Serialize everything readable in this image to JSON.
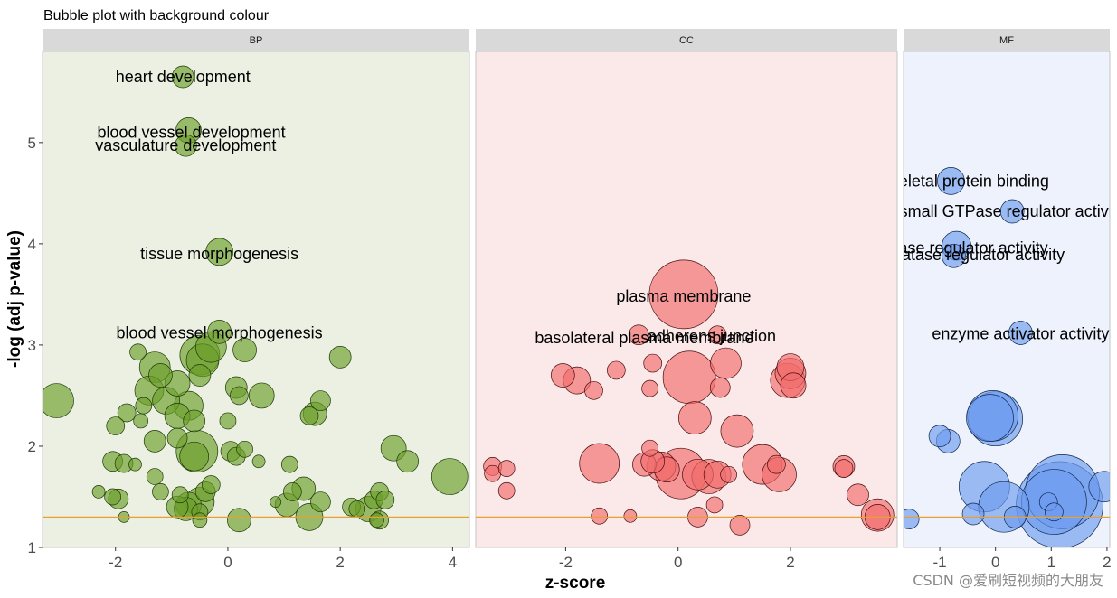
{
  "title": "Bubble plot with background colour",
  "watermark": "CSDN @爱刷短视频的大朋友",
  "chart_data": {
    "type": "scatter",
    "title": "Bubble plot with background colour",
    "xlabel": "z-score",
    "ylabel": "-log (adj p-value)",
    "ylim": [
      1,
      5.9
    ],
    "y_ticks": [
      "1",
      "2",
      "3",
      "4",
      "5"
    ],
    "threshold_line": 1.3,
    "panels": [
      {
        "name": "BP",
        "fill": "#6b9e2a",
        "stroke": "#1d3a05",
        "background": "#ebf0e3",
        "xlim": [
          -3.3,
          4.3
        ],
        "x_ticks": [
          "-2",
          "0",
          "2",
          "4"
        ],
        "x_tick_values": [
          -2,
          0,
          2,
          4
        ],
        "labels": [
          {
            "text": "heart development",
            "x": -0.8,
            "y": 5.65
          },
          {
            "text": "blood vessel development",
            "x": -0.65,
            "y": 5.1
          },
          {
            "text": "vasculature development",
            "x": -0.75,
            "y": 4.97
          },
          {
            "text": "tissue morphogenesis",
            "x": -0.15,
            "y": 3.9
          },
          {
            "text": "blood vessel morphogenesis",
            "x": -0.15,
            "y": 3.12
          }
        ],
        "points": [
          {
            "x": -0.8,
            "y": 5.65,
            "r": 12
          },
          {
            "x": -0.7,
            "y": 5.12,
            "r": 14
          },
          {
            "x": -0.75,
            "y": 4.97,
            "r": 12
          },
          {
            "x": -0.15,
            "y": 3.92,
            "r": 15
          },
          {
            "x": -0.15,
            "y": 3.13,
            "r": 13
          },
          {
            "x": -3.05,
            "y": 2.45,
            "r": 19
          },
          {
            "x": -1.6,
            "y": 2.93,
            "r": 9
          },
          {
            "x": -1.3,
            "y": 2.78,
            "r": 17
          },
          {
            "x": -1.2,
            "y": 2.7,
            "r": 13
          },
          {
            "x": -1.4,
            "y": 2.55,
            "r": 16
          },
          {
            "x": -1.1,
            "y": 2.45,
            "r": 15
          },
          {
            "x": -0.9,
            "y": 2.62,
            "r": 14
          },
          {
            "x": -0.7,
            "y": 2.4,
            "r": 16
          },
          {
            "x": -0.5,
            "y": 2.9,
            "r": 22
          },
          {
            "x": -0.45,
            "y": 2.85,
            "r": 18
          },
          {
            "x": -0.3,
            "y": 2.98,
            "r": 17
          },
          {
            "x": 0.3,
            "y": 2.95,
            "r": 13
          },
          {
            "x": 0.15,
            "y": 2.58,
            "r": 12
          },
          {
            "x": 0.2,
            "y": 2.5,
            "r": 10
          },
          {
            "x": 0.6,
            "y": 2.5,
            "r": 14
          },
          {
            "x": 2.0,
            "y": 2.88,
            "r": 12
          },
          {
            "x": 1.65,
            "y": 2.45,
            "r": 11
          },
          {
            "x": 1.55,
            "y": 2.32,
            "r": 13
          },
          {
            "x": 1.45,
            "y": 2.3,
            "r": 10
          },
          {
            "x": -1.8,
            "y": 2.33,
            "r": 10
          },
          {
            "x": -2.0,
            "y": 2.2,
            "r": 10
          },
          {
            "x": -1.5,
            "y": 2.4,
            "r": 9
          },
          {
            "x": -1.55,
            "y": 2.25,
            "r": 8
          },
          {
            "x": -0.9,
            "y": 2.3,
            "r": 14
          },
          {
            "x": -0.6,
            "y": 2.25,
            "r": 12
          },
          {
            "x": -0.5,
            "y": 2.7,
            "r": 12
          },
          {
            "x": 0.0,
            "y": 2.25,
            "r": 9
          },
          {
            "x": -0.55,
            "y": 1.95,
            "r": 23
          },
          {
            "x": -0.6,
            "y": 1.9,
            "r": 16
          },
          {
            "x": -0.9,
            "y": 2.08,
            "r": 11
          },
          {
            "x": -1.3,
            "y": 2.05,
            "r": 12
          },
          {
            "x": -2.05,
            "y": 1.85,
            "r": 11
          },
          {
            "x": -1.85,
            "y": 1.83,
            "r": 10
          },
          {
            "x": -1.65,
            "y": 1.82,
            "r": 7
          },
          {
            "x": -1.3,
            "y": 1.7,
            "r": 9
          },
          {
            "x": 0.05,
            "y": 1.95,
            "r": 11
          },
          {
            "x": 0.15,
            "y": 1.9,
            "r": 10
          },
          {
            "x": 0.3,
            "y": 1.97,
            "r": 9
          },
          {
            "x": 0.55,
            "y": 1.85,
            "r": 7
          },
          {
            "x": 1.1,
            "y": 1.82,
            "r": 9
          },
          {
            "x": 2.95,
            "y": 1.98,
            "r": 14
          },
          {
            "x": 3.2,
            "y": 1.85,
            "r": 12
          },
          {
            "x": 3.95,
            "y": 1.7,
            "r": 20
          },
          {
            "x": -2.3,
            "y": 1.55,
            "r": 7
          },
          {
            "x": -2.05,
            "y": 1.5,
            "r": 9
          },
          {
            "x": -1.95,
            "y": 1.48,
            "r": 11
          },
          {
            "x": -1.2,
            "y": 1.55,
            "r": 9
          },
          {
            "x": -0.7,
            "y": 1.42,
            "r": 14
          },
          {
            "x": -0.5,
            "y": 1.45,
            "r": 16
          },
          {
            "x": -0.4,
            "y": 1.55,
            "r": 11
          },
          {
            "x": -0.3,
            "y": 1.62,
            "r": 10
          },
          {
            "x": -0.85,
            "y": 1.52,
            "r": 9
          },
          {
            "x": -0.5,
            "y": 1.35,
            "r": 9
          },
          {
            "x": -0.5,
            "y": 1.27,
            "r": 8
          },
          {
            "x": -0.75,
            "y": 1.38,
            "r": 13
          },
          {
            "x": -0.9,
            "y": 1.4,
            "r": 12
          },
          {
            "x": 0.2,
            "y": 1.27,
            "r": 13
          },
          {
            "x": 0.85,
            "y": 1.45,
            "r": 6
          },
          {
            "x": 1.05,
            "y": 1.42,
            "r": 13
          },
          {
            "x": 1.15,
            "y": 1.55,
            "r": 10
          },
          {
            "x": 1.35,
            "y": 1.58,
            "r": 13
          },
          {
            "x": 1.45,
            "y": 1.3,
            "r": 15
          },
          {
            "x": 1.65,
            "y": 1.45,
            "r": 11
          },
          {
            "x": 2.2,
            "y": 1.4,
            "r": 10
          },
          {
            "x": 2.3,
            "y": 1.38,
            "r": 9
          },
          {
            "x": 2.5,
            "y": 1.38,
            "r": 14
          },
          {
            "x": 2.6,
            "y": 1.47,
            "r": 10
          },
          {
            "x": 2.7,
            "y": 1.55,
            "r": 10
          },
          {
            "x": 2.8,
            "y": 1.47,
            "r": 10
          },
          {
            "x": 2.65,
            "y": 1.27,
            "r": 8
          },
          {
            "x": 2.7,
            "y": 1.27,
            "r": 10
          },
          {
            "x": -1.85,
            "y": 1.3,
            "r": 6
          }
        ]
      },
      {
        "name": "CC",
        "fill": "#f16b6b",
        "stroke": "#4a0d0d",
        "background": "#fbe9e9",
        "xlim": [
          -3.6,
          3.9
        ],
        "x_ticks": [
          "-2",
          "0",
          "2"
        ],
        "x_tick_values": [
          -2,
          0,
          2
        ],
        "labels": [
          {
            "text": "plasma membrane",
            "x": 0.1,
            "y": 3.48
          },
          {
            "text": "basolateral plasma membrane",
            "x": -0.6,
            "y": 3.07
          },
          {
            "text": "adherens junction",
            "x": 0.6,
            "y": 3.09
          }
        ],
        "points": [
          {
            "x": 0.1,
            "y": 3.5,
            "r": 38
          },
          {
            "x": -0.7,
            "y": 3.1,
            "r": 11
          },
          {
            "x": 0.7,
            "y": 3.1,
            "r": 10
          },
          {
            "x": 0.85,
            "y": 2.82,
            "r": 17
          },
          {
            "x": 0.2,
            "y": 2.68,
            "r": 29
          },
          {
            "x": -0.45,
            "y": 2.82,
            "r": 10
          },
          {
            "x": -1.1,
            "y": 2.75,
            "r": 10
          },
          {
            "x": -2.05,
            "y": 2.7,
            "r": 13
          },
          {
            "x": -1.8,
            "y": 2.65,
            "r": 15
          },
          {
            "x": -1.5,
            "y": 2.55,
            "r": 10
          },
          {
            "x": -0.5,
            "y": 2.57,
            "r": 9
          },
          {
            "x": 0.75,
            "y": 2.58,
            "r": 11
          },
          {
            "x": 1.95,
            "y": 2.65,
            "r": 19
          },
          {
            "x": 2.0,
            "y": 2.72,
            "r": 17
          },
          {
            "x": 2.05,
            "y": 2.6,
            "r": 14
          },
          {
            "x": 2.0,
            "y": 2.78,
            "r": 15
          },
          {
            "x": 0.3,
            "y": 2.28,
            "r": 18
          },
          {
            "x": 1.05,
            "y": 2.15,
            "r": 18
          },
          {
            "x": -1.4,
            "y": 1.83,
            "r": 22
          },
          {
            "x": -0.6,
            "y": 1.82,
            "r": 13
          },
          {
            "x": -0.45,
            "y": 1.85,
            "r": 13
          },
          {
            "x": -0.5,
            "y": 1.98,
            "r": 9
          },
          {
            "x": -0.3,
            "y": 1.8,
            "r": 16
          },
          {
            "x": -0.2,
            "y": 1.77,
            "r": 14
          },
          {
            "x": 0.05,
            "y": 1.73,
            "r": 28
          },
          {
            "x": 0.35,
            "y": 1.72,
            "r": 17
          },
          {
            "x": 0.55,
            "y": 1.7,
            "r": 19
          },
          {
            "x": 0.7,
            "y": 1.72,
            "r": 15
          },
          {
            "x": 0.9,
            "y": 1.72,
            "r": 9
          },
          {
            "x": 1.5,
            "y": 1.82,
            "r": 22
          },
          {
            "x": 1.8,
            "y": 1.72,
            "r": 19
          },
          {
            "x": 1.75,
            "y": 1.82,
            "r": 10
          },
          {
            "x": 2.95,
            "y": 1.8,
            "r": 12
          },
          {
            "x": 2.95,
            "y": 1.78,
            "r": 10
          },
          {
            "x": 3.2,
            "y": 1.52,
            "r": 12
          },
          {
            "x": 3.55,
            "y": 1.32,
            "r": 18
          },
          {
            "x": 3.55,
            "y": 1.3,
            "r": 14
          },
          {
            "x": -3.3,
            "y": 1.8,
            "r": 10
          },
          {
            "x": -3.3,
            "y": 1.73,
            "r": 9
          },
          {
            "x": -3.05,
            "y": 1.78,
            "r": 9
          },
          {
            "x": -3.05,
            "y": 1.56,
            "r": 9
          },
          {
            "x": -1.4,
            "y": 1.31,
            "r": 9
          },
          {
            "x": -0.85,
            "y": 1.31,
            "r": 7
          },
          {
            "x": 0.35,
            "y": 1.3,
            "r": 11
          },
          {
            "x": 0.65,
            "y": 1.42,
            "r": 9
          },
          {
            "x": 1.1,
            "y": 1.22,
            "r": 11
          }
        ]
      },
      {
        "name": "MF",
        "fill": "#6d9bf0",
        "stroke": "#10264d",
        "background": "#edf2fc",
        "xlim": [
          -1.65,
          2.05
        ],
        "x_ticks": [
          "-1",
          "0",
          "1",
          "2"
        ],
        "x_tick_values": [
          -1,
          0,
          1,
          2
        ],
        "labels": [
          {
            "text": "cytoskeletal protein binding",
            "x": -0.8,
            "y": 4.62
          },
          {
            "text": "small GTPase regulator activity",
            "x": 0.3,
            "y": 4.32
          },
          {
            "text": "GTPase regulator activity",
            "x": -0.7,
            "y": 3.96
          },
          {
            "text": "phosphatase regulator activity",
            "x": -0.7,
            "y": 3.89
          },
          {
            "text": "enzyme activator activity",
            "x": 0.45,
            "y": 3.11
          }
        ],
        "points": [
          {
            "x": -0.8,
            "y": 4.62,
            "r": 15
          },
          {
            "x": 0.3,
            "y": 4.32,
            "r": 13
          },
          {
            "x": -0.7,
            "y": 3.98,
            "r": 16
          },
          {
            "x": -0.75,
            "y": 3.88,
            "r": 13
          },
          {
            "x": 0.45,
            "y": 3.12,
            "r": 13
          },
          {
            "x": -0.05,
            "y": 2.3,
            "r": 28
          },
          {
            "x": 0.0,
            "y": 2.27,
            "r": 30
          },
          {
            "x": -0.1,
            "y": 2.28,
            "r": 26
          },
          {
            "x": -1.0,
            "y": 2.1,
            "r": 12
          },
          {
            "x": -0.85,
            "y": 2.05,
            "r": 13
          },
          {
            "x": -0.2,
            "y": 1.6,
            "r": 28
          },
          {
            "x": 0.15,
            "y": 1.4,
            "r": 28
          },
          {
            "x": 1.2,
            "y": 1.55,
            "r": 41
          },
          {
            "x": 1.15,
            "y": 1.42,
            "r": 48
          },
          {
            "x": 1.05,
            "y": 1.45,
            "r": 36
          },
          {
            "x": 0.95,
            "y": 1.45,
            "r": 10
          },
          {
            "x": 1.05,
            "y": 1.35,
            "r": 10
          },
          {
            "x": -0.4,
            "y": 1.33,
            "r": 12
          },
          {
            "x": 0.35,
            "y": 1.3,
            "r": 12
          },
          {
            "x": 1.95,
            "y": 1.6,
            "r": 17
          },
          {
            "x": -1.55,
            "y": 1.28,
            "r": 11
          }
        ]
      }
    ]
  }
}
